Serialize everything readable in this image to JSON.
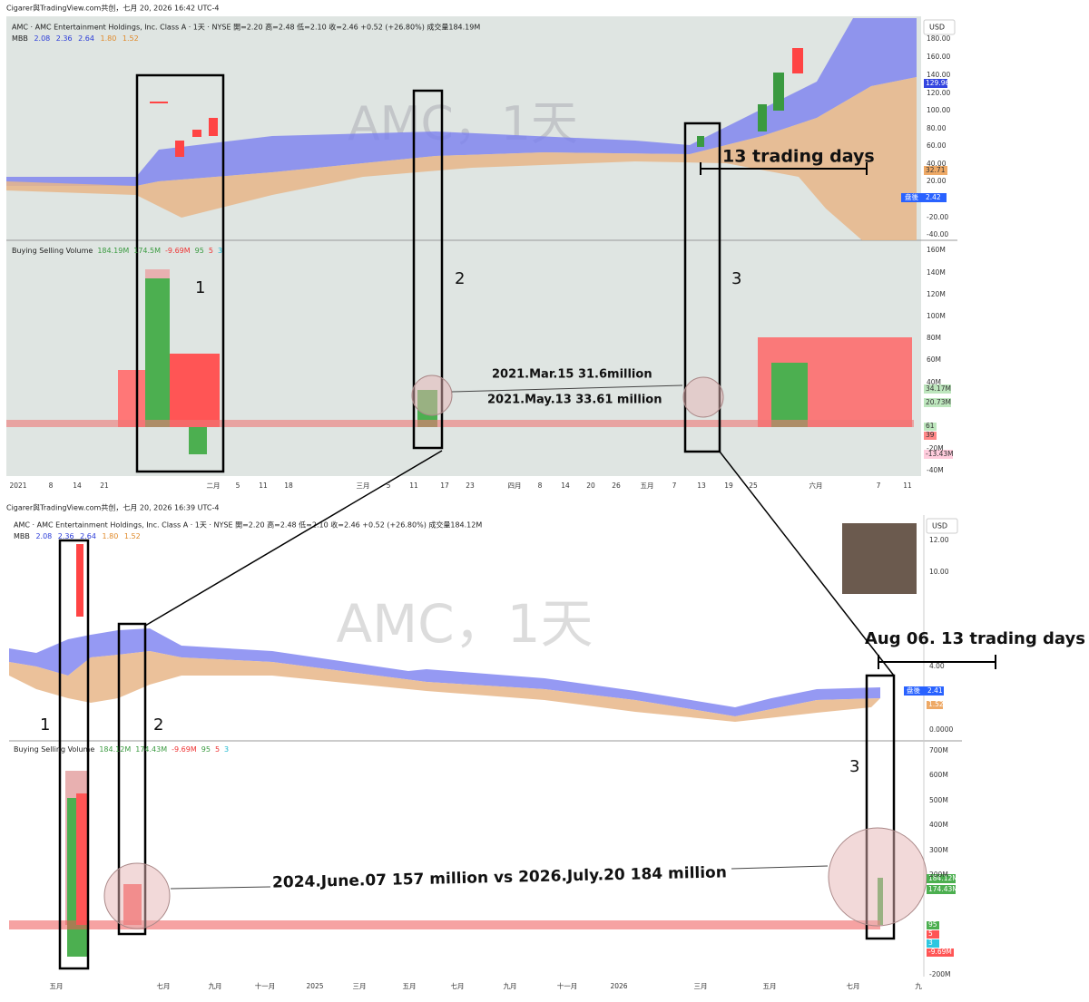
{
  "top": {
    "header": "Cigarer與TradingView.com共创，七月 20, 2026 16:42 UTC-4",
    "symbol_line": "AMC · AMC Entertainment Holdings, Inc. Class A · 1天 · NYSE  開=2.20  高=2.48  低=2.10  收=2.46  +0.52 (+26.80%)  成交量184.19M",
    "indicator": {
      "name": "MBB",
      "values": [
        "2.08",
        "2.36",
        "2.64",
        "1.80",
        "1.52"
      ]
    },
    "watermark": "AMC，1天",
    "currency": "USD",
    "price_axis": [
      "180.00",
      "160.00",
      "140.00",
      "120.00",
      "100.00",
      "80.00",
      "60.00",
      "40.00",
      "20.00",
      "-20.00",
      "-40.00"
    ],
    "price_tags": [
      "129.96",
      "32.71",
      "盘後",
      "2.42"
    ],
    "volume_legend": {
      "name": "Buying Selling Volume",
      "values": [
        "184.19M",
        "174.5M",
        "-9.69M",
        "95",
        "5",
        "3"
      ]
    },
    "volume_axis": [
      "160M",
      "140M",
      "120M",
      "100M",
      "80M",
      "60M",
      "40M",
      "-20M",
      "-40M"
    ],
    "volume_tags": [
      "34.17M",
      "20.73M",
      "61",
      "39",
      "-13.43M"
    ],
    "time_axis": [
      "2021",
      "8",
      "14",
      "21",
      "二月",
      "5",
      "11",
      "18",
      "三月",
      "5",
      "11",
      "17",
      "23",
      "四月",
      "8",
      "14",
      "20",
      "26",
      "五月",
      "7",
      "13",
      "19",
      "25",
      "六月",
      "7",
      "11"
    ],
    "annotations": {
      "boxes": [
        "1",
        "2",
        "3"
      ],
      "span": "13 trading days",
      "note_1": "2021.Mar.15 31.6million",
      "note_2": "2021.May.13 33.61 million"
    }
  },
  "bottom": {
    "header": "Cigarer與TradingView.com共创，七月 20, 2026 16:39 UTC-4",
    "symbol_line": "AMC · AMC Entertainment Holdings, Inc. Class A · 1天 · NYSE  開=2.20  高=2.48  低=2.10  收=2.46  +0.52 (+26.80%)  成交量184.12M",
    "indicator": {
      "name": "MBB",
      "values": [
        "2.08",
        "2.36",
        "2.64",
        "1.80",
        "1.52"
      ]
    },
    "watermark": "AMC，1天",
    "currency": "USD",
    "price_axis": [
      "12.00",
      "10.00",
      "4.00",
      "0.0000"
    ],
    "price_tags": [
      "盘後",
      "2.41",
      "1.52"
    ],
    "volume_legend": {
      "name": "Buying Selling Volume",
      "values": [
        "184.12M",
        "174.43M",
        "-9.69M",
        "95",
        "5",
        "3"
      ]
    },
    "volume_axis": [
      "700M",
      "600M",
      "500M",
      "400M",
      "300M",
      "200M",
      "-200M"
    ],
    "volume_tags": [
      "184.12M",
      "174.43M",
      "95",
      "5",
      "3",
      "-9.69M"
    ],
    "time_axis": [
      "五月",
      "七月",
      "九月",
      "十一月",
      "2025",
      "三月",
      "五月",
      "七月",
      "九月",
      "十一月",
      "2026",
      "三月",
      "五月",
      "七月",
      "九"
    ],
    "annotations": {
      "boxes": [
        "1",
        "2",
        "3"
      ],
      "span": "Aug 06. 13 trading days",
      "note": "2024.June.07 157 million vs 2026.July.20 184 million"
    }
  }
}
